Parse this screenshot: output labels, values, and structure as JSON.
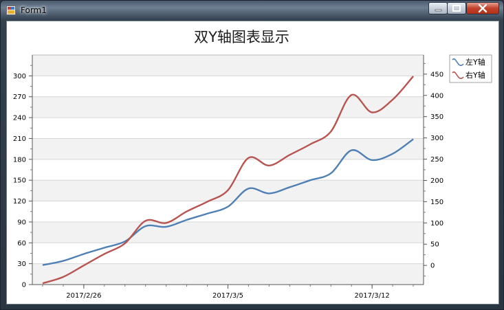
{
  "window": {
    "title": "Form1"
  },
  "chart_data": {
    "type": "line",
    "title": "双Y轴图表显示",
    "x_ticks": [
      "2017/2/26",
      "2017/3/5",
      "2017/3/12"
    ],
    "x_dates": [
      "2017-02-24",
      "2017-02-25",
      "2017-02-26",
      "2017-02-27",
      "2017-02-28",
      "2017-03-01",
      "2017-03-02",
      "2017-03-03",
      "2017-03-04",
      "2017-03-05",
      "2017-03-06",
      "2017-03-07",
      "2017-03-08",
      "2017-03-09",
      "2017-03-10",
      "2017-03-11",
      "2017-03-12",
      "2017-03-13",
      "2017-03-14"
    ],
    "y_left": {
      "min": 0,
      "max": 330,
      "ticks": [
        0,
        30,
        60,
        90,
        120,
        150,
        180,
        210,
        240,
        270,
        300
      ]
    },
    "y_right": {
      "min": -45,
      "max": 495,
      "ticks": [
        0,
        50,
        100,
        150,
        200,
        250,
        300,
        350,
        400,
        450
      ]
    },
    "grid": "horizontal bands",
    "legend_position": "top-right",
    "series": [
      {
        "name": "左Y轴",
        "axis": "left",
        "color": "#4e7fb5",
        "values": [
          28,
          34,
          44,
          53,
          62,
          84,
          83,
          93,
          102,
          112,
          138,
          131,
          140,
          150,
          160,
          193,
          179,
          188,
          209
        ]
      },
      {
        "name": "右Y轴",
        "axis": "right",
        "color": "#b85450",
        "values": [
          -42,
          -27,
          0,
          27,
          52,
          105,
          100,
          127,
          150,
          177,
          253,
          235,
          260,
          285,
          315,
          401,
          360,
          390,
          445
        ]
      }
    ]
  }
}
